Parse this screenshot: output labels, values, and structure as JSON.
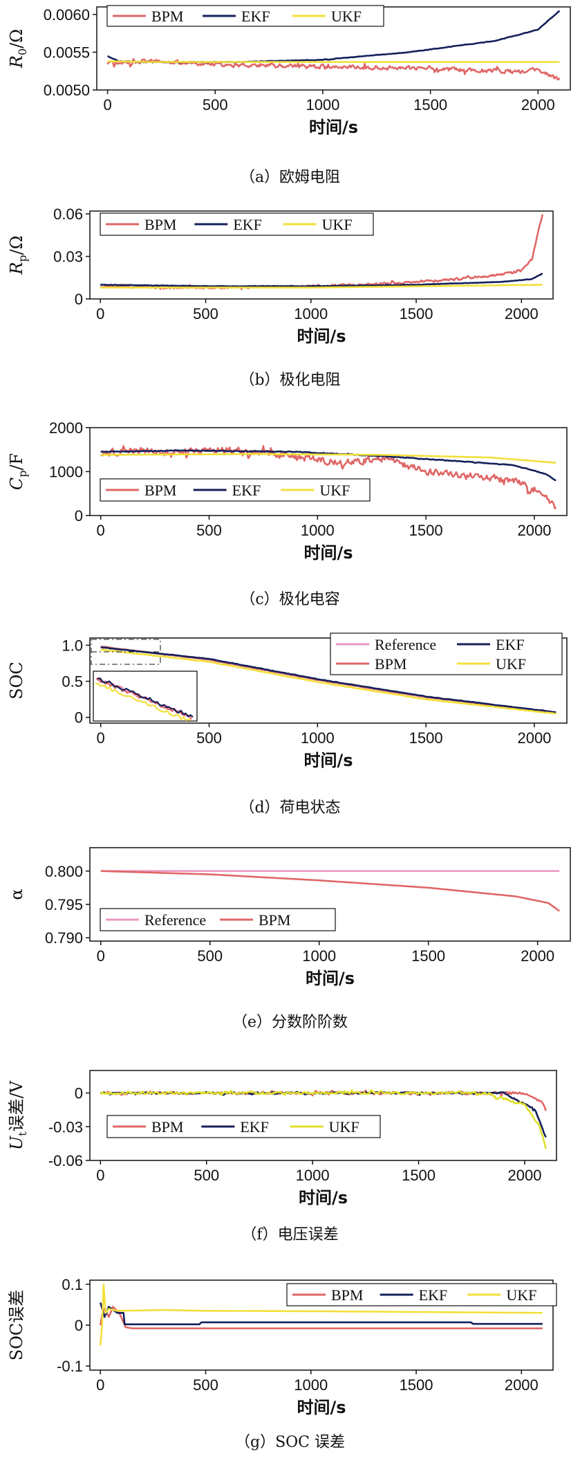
{
  "chart_data": [
    {
      "id": "a",
      "type": "line",
      "caption": "（a）欧姆电阻",
      "xlabel": "时间/s",
      "ylabel_main": "R",
      "ylabel_sub": "0",
      "ylabel_unit": "/Ω",
      "xlim": [
        -50,
        2150
      ],
      "ylim": [
        0.005,
        0.0061
      ],
      "xticks": [
        0,
        500,
        1000,
        1500,
        2000
      ],
      "xtick_labels": [
        "0",
        "500",
        "1000",
        "1500",
        "2000"
      ],
      "yticks": [
        0.005,
        0.0055,
        0.006
      ],
      "ytick_labels": [
        "0.0050",
        "0.0055",
        "0.0060"
      ],
      "legend": [
        "BPM",
        "EKF",
        "UKF"
      ],
      "series": [
        {
          "name": "BPM",
          "color": "#e06666",
          "noise": 4e-05,
          "jag": 0.6,
          "points": [
            [
              0,
              0.00535
            ],
            [
              200,
              0.00538
            ],
            [
              600,
              0.00533
            ],
            [
              1200,
              0.0053
            ],
            [
              1500,
              0.00528
            ],
            [
              1800,
              0.00525
            ],
            [
              2000,
              0.00525
            ],
            [
              2100,
              0.00515
            ]
          ]
        },
        {
          "name": "EKF",
          "color": "#14205a",
          "noise": 5e-06,
          "jag": 0.2,
          "points": [
            [
              0,
              0.00545
            ],
            [
              50,
              0.00538
            ],
            [
              150,
              0.00537
            ],
            [
              600,
              0.00537
            ],
            [
              1000,
              0.0054
            ],
            [
              1400,
              0.0055
            ],
            [
              1800,
              0.00565
            ],
            [
              2000,
              0.0058
            ],
            [
              2100,
              0.00605
            ]
          ]
        },
        {
          "name": "UKF",
          "color": "#f2e03a",
          "noise": 0.0,
          "jag": 0.0,
          "points": [
            [
              0,
              0.00538
            ],
            [
              200,
              0.00537
            ],
            [
              2100,
              0.00537
            ]
          ]
        }
      ]
    },
    {
      "id": "b",
      "type": "line",
      "caption": "（b）极化电阻",
      "xlabel": "时间/s",
      "ylabel_main": "R",
      "ylabel_sub": "p",
      "ylabel_unit": "/Ω",
      "xlim": [
        -50,
        2150
      ],
      "ylim": [
        0,
        0.062
      ],
      "xticks": [
        0,
        500,
        1000,
        1500,
        2000
      ],
      "xtick_labels": [
        "0",
        "500",
        "1000",
        "1500",
        "2000"
      ],
      "yticks": [
        0,
        0.03,
        0.06
      ],
      "ytick_labels": [
        "0",
        "0.03",
        "0.06"
      ],
      "legend": [
        "BPM",
        "EKF",
        "UKF"
      ],
      "series": [
        {
          "name": "BPM",
          "color": "#e06666",
          "noise": 0.0012,
          "jag": 0.7,
          "points": [
            [
              0,
              0.009
            ],
            [
              500,
              0.008
            ],
            [
              1000,
              0.009
            ],
            [
              1400,
              0.011
            ],
            [
              1700,
              0.014
            ],
            [
              1900,
              0.017
            ],
            [
              2000,
              0.02
            ],
            [
              2050,
              0.028
            ],
            [
              2100,
              0.06
            ]
          ]
        },
        {
          "name": "EKF",
          "color": "#14205a",
          "noise": 0.0002,
          "jag": 0.2,
          "points": [
            [
              0,
              0.01
            ],
            [
              500,
              0.009
            ],
            [
              1000,
              0.009
            ],
            [
              1500,
              0.01
            ],
            [
              1900,
              0.012
            ],
            [
              2050,
              0.014
            ],
            [
              2100,
              0.018
            ]
          ]
        },
        {
          "name": "UKF",
          "color": "#f2e03a",
          "noise": 0.0,
          "jag": 0.0,
          "points": [
            [
              0,
              0.008
            ],
            [
              1000,
              0.008
            ],
            [
              2100,
              0.01
            ]
          ]
        }
      ]
    },
    {
      "id": "c",
      "type": "line",
      "caption": "（c）极化电容",
      "xlabel": "时间/s",
      "ylabel_main": "C",
      "ylabel_sub": "p",
      "ylabel_unit": "/F",
      "xlim": [
        -50,
        2150
      ],
      "ylim": [
        0,
        2000
      ],
      "xticks": [
        0,
        500,
        1000,
        1500,
        2000
      ],
      "xtick_labels": [
        "0",
        "500",
        "1000",
        "1500",
        "2000"
      ],
      "yticks": [
        0,
        1000,
        2000
      ],
      "ytick_labels": [
        "0",
        "1000",
        "2000"
      ],
      "legend": [
        "BPM",
        "EKF",
        "UKF"
      ],
      "series": [
        {
          "name": "BPM",
          "color": "#e06666",
          "noise": 110,
          "jag": 0.7,
          "points": [
            [
              0,
              1400
            ],
            [
              150,
              1500
            ],
            [
              300,
              1420
            ],
            [
              550,
              1500
            ],
            [
              900,
              1350
            ],
            [
              1100,
              1200
            ],
            [
              1300,
              1300
            ],
            [
              1500,
              1000
            ],
            [
              1700,
              900
            ],
            [
              1900,
              800
            ],
            [
              2000,
              600
            ],
            [
              2100,
              200
            ]
          ]
        },
        {
          "name": "EKF",
          "color": "#14205a",
          "noise": 12,
          "jag": 0.3,
          "points": [
            [
              0,
              1450
            ],
            [
              400,
              1480
            ],
            [
              900,
              1450
            ],
            [
              1300,
              1350
            ],
            [
              1700,
              1220
            ],
            [
              1900,
              1150
            ],
            [
              2050,
              950
            ],
            [
              2100,
              800
            ]
          ]
        },
        {
          "name": "UKF",
          "color": "#f2e03a",
          "noise": 0,
          "jag": 0.0,
          "points": [
            [
              0,
              1380
            ],
            [
              700,
              1400
            ],
            [
              1300,
              1380
            ],
            [
              1800,
              1320
            ],
            [
              2100,
              1200
            ]
          ]
        }
      ]
    },
    {
      "id": "d",
      "type": "line",
      "caption": "（d）荷电状态",
      "xlabel": "时间/s",
      "ylabel_main": "SOC",
      "ylabel_sub": "",
      "ylabel_unit": "",
      "xlim": [
        -50,
        2150
      ],
      "ylim": [
        -0.08,
        1.1
      ],
      "xticks": [
        0,
        500,
        1000,
        1500,
        2000
      ],
      "xtick_labels": [
        "0",
        "500",
        "1000",
        "1500",
        "2000"
      ],
      "yticks": [
        0,
        0.5,
        1.0
      ],
      "ytick_labels": [
        "0",
        "0.5",
        "1.0"
      ],
      "legend": [
        "Reference",
        "BPM",
        "EKF",
        "UKF"
      ],
      "inset": true,
      "series": [
        {
          "name": "Reference",
          "color": "#e99ac0",
          "noise": 0.004,
          "jag": 0.3,
          "points": [
            [
              0,
              0.98
            ],
            [
              500,
              0.8
            ],
            [
              1000,
              0.52
            ],
            [
              1500,
              0.28
            ],
            [
              2100,
              0.07
            ]
          ]
        },
        {
          "name": "BPM",
          "color": "#e06666",
          "noise": 0.005,
          "jag": 0.3,
          "points": [
            [
              0,
              0.98
            ],
            [
              500,
              0.8
            ],
            [
              1000,
              0.52
            ],
            [
              1500,
              0.28
            ],
            [
              2100,
              0.07
            ]
          ]
        },
        {
          "name": "EKF",
          "color": "#14205a",
          "noise": 0.005,
          "jag": 0.3,
          "points": [
            [
              0,
              0.97
            ],
            [
              500,
              0.81
            ],
            [
              1000,
              0.53
            ],
            [
              1500,
              0.29
            ],
            [
              2100,
              0.07
            ]
          ]
        },
        {
          "name": "UKF",
          "color": "#f2e03a",
          "noise": 0.004,
          "jag": 0.3,
          "points": [
            [
              0,
              0.94
            ],
            [
              500,
              0.77
            ],
            [
              1000,
              0.49
            ],
            [
              1500,
              0.25
            ],
            [
              2100,
              0.05
            ]
          ]
        }
      ]
    },
    {
      "id": "e",
      "type": "line",
      "caption": "（e）分数阶阶数",
      "xlabel": "时间/s",
      "ylabel_main": "α",
      "ylabel_sub": "",
      "ylabel_unit": "",
      "xlim": [
        -50,
        2150
      ],
      "ylim": [
        0.7895,
        0.8035
      ],
      "xticks": [
        0,
        500,
        1000,
        1500,
        2000
      ],
      "xtick_labels": [
        "0",
        "500",
        "1000",
        "1500",
        "2000"
      ],
      "yticks": [
        0.79,
        0.795,
        0.8
      ],
      "ytick_labels": [
        "0.790",
        "0.795",
        "0.800"
      ],
      "legend": [
        "Reference",
        "BPM"
      ],
      "series": [
        {
          "name": "Reference",
          "color": "#e99ac0",
          "noise": 0,
          "jag": 0.0,
          "points": [
            [
              0,
              0.8
            ],
            [
              2100,
              0.8
            ]
          ]
        },
        {
          "name": "BPM",
          "color": "#e06666",
          "noise": 0,
          "jag": 0.0,
          "points": [
            [
              0,
              0.8
            ],
            [
              500,
              0.7995
            ],
            [
              1000,
              0.7986
            ],
            [
              1500,
              0.7975
            ],
            [
              1900,
              0.7962
            ],
            [
              2050,
              0.7952
            ],
            [
              2100,
              0.794
            ]
          ]
        }
      ]
    },
    {
      "id": "f",
      "type": "line",
      "caption": "（f）电压误差",
      "xlabel": "时间/s",
      "ylabel_main": "U",
      "ylabel_sub": "t",
      "ylabel_unit": "误差/V",
      "xlim": [
        -50,
        2150
      ],
      "ylim": [
        -0.06,
        0.02
      ],
      "xticks": [
        0,
        500,
        1000,
        1500,
        2000
      ],
      "xtick_labels": [
        "0",
        "500",
        "1000",
        "1500",
        "2000"
      ],
      "yticks": [
        -0.06,
        -0.03,
        0
      ],
      "ytick_labels": [
        "-0.06",
        "-0.03",
        "0"
      ],
      "legend": [
        "BPM",
        "EKF",
        "UKF"
      ],
      "series": [
        {
          "name": "BPM",
          "color": "#e06666",
          "noise": 0.0015,
          "jag": 0.9,
          "points": [
            [
              0,
              0.0
            ],
            [
              1500,
              0.0
            ],
            [
              2000,
              0.0
            ],
            [
              2080,
              -0.008
            ],
            [
              2100,
              -0.015
            ]
          ]
        },
        {
          "name": "EKF",
          "color": "#14205a",
          "noise": 0.001,
          "jag": 0.9,
          "points": [
            [
              0,
              0.0
            ],
            [
              1900,
              0.0
            ],
            [
              2050,
              -0.015
            ],
            [
              2100,
              -0.04
            ]
          ]
        },
        {
          "name": "UKF",
          "color": "#e0e02a",
          "noise": 0.0015,
          "jag": 0.9,
          "points": [
            [
              0,
              0.0
            ],
            [
              1800,
              0.0
            ],
            [
              2000,
              -0.01
            ],
            [
              2070,
              -0.03
            ],
            [
              2100,
              -0.048
            ]
          ]
        }
      ]
    },
    {
      "id": "g",
      "type": "line",
      "caption": "（g）SOC 误差",
      "xlabel": "时间/s",
      "ylabel_main": "SOC误差",
      "ylabel_sub": "",
      "ylabel_unit": "",
      "xlim": [
        -50,
        2150
      ],
      "ylim": [
        -0.11,
        0.11
      ],
      "xticks": [
        0,
        500,
        1000,
        1500,
        2000
      ],
      "xtick_labels": [
        "0",
        "500",
        "1000",
        "1500",
        "2000"
      ],
      "yticks": [
        -0.1,
        0,
        0.1
      ],
      "ytick_labels": [
        "-0.1",
        "0",
        "0.1"
      ],
      "legend": [
        "BPM",
        "EKF",
        "UKF"
      ],
      "series": [
        {
          "name": "BPM",
          "color": "#e06666",
          "noise": 0,
          "jag": 0.0,
          "points": [
            [
              0,
              0.0
            ],
            [
              10,
              0.03
            ],
            [
              20,
              0.04
            ],
            [
              40,
              0.02
            ],
            [
              60,
              0.045
            ],
            [
              90,
              0.03
            ],
            [
              120,
              -0.005
            ],
            [
              150,
              -0.008
            ],
            [
              2100,
              -0.008
            ]
          ]
        },
        {
          "name": "EKF",
          "color": "#14205a",
          "noise": 0,
          "jag": 0.0,
          "points": [
            [
              0,
              0.055
            ],
            [
              20,
              0.02
            ],
            [
              40,
              0.045
            ],
            [
              80,
              0.03
            ],
            [
              110,
              0.03
            ],
            [
              115,
              0.002
            ],
            [
              470,
              0.002
            ],
            [
              480,
              0.007
            ],
            [
              1760,
              0.007
            ],
            [
              1770,
              0.003
            ],
            [
              2100,
              0.003
            ]
          ]
        },
        {
          "name": "UKF",
          "color": "#f2e03a",
          "noise": 0,
          "jag": 0.0,
          "points": [
            [
              0,
              -0.05
            ],
            [
              8,
              0.0
            ],
            [
              15,
              0.1
            ],
            [
              25,
              0.03
            ],
            [
              40,
              0.04
            ],
            [
              80,
              0.035
            ],
            [
              300,
              0.037
            ],
            [
              500,
              0.035
            ],
            [
              1000,
              0.034
            ],
            [
              2100,
              0.03
            ]
          ]
        }
      ]
    }
  ]
}
